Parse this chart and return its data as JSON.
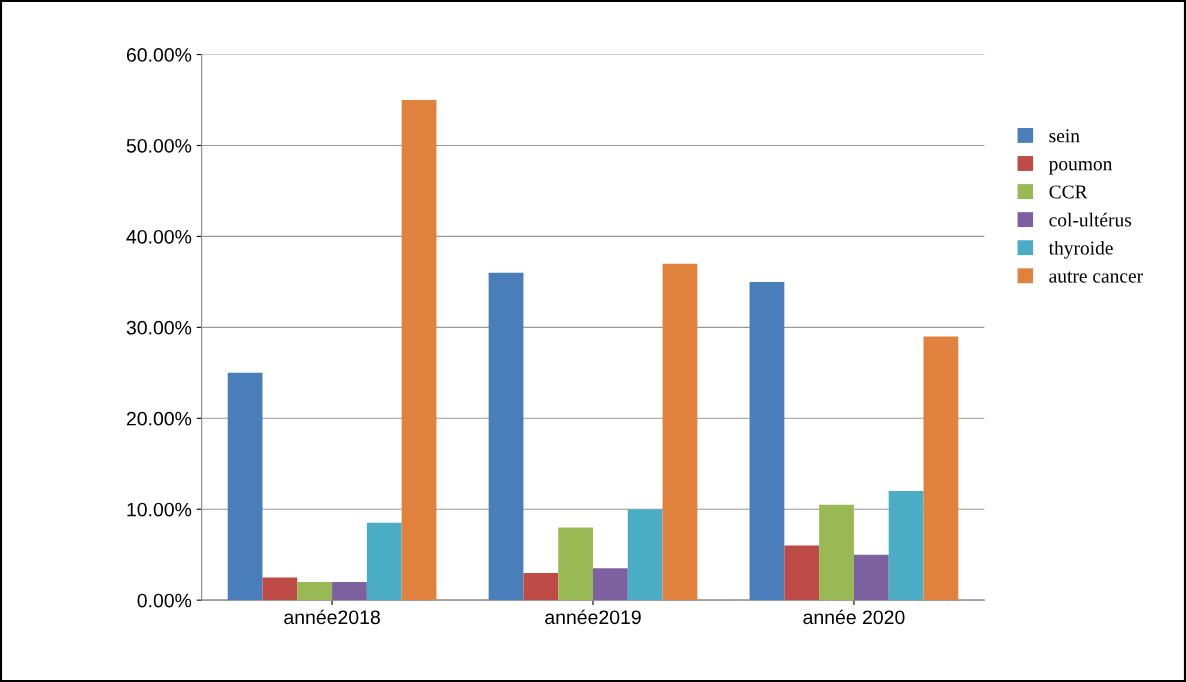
{
  "chart_data": {
    "type": "bar",
    "categories": [
      "année2018",
      "année2019",
      "année 2020"
    ],
    "series": [
      {
        "name": "sein",
        "color": "#4a7ebb",
        "values": [
          25,
          36,
          35
        ]
      },
      {
        "name": "poumon",
        "color": "#be4b48",
        "values": [
          2.5,
          3,
          6
        ]
      },
      {
        "name": "CCR",
        "color": "#98b954",
        "values": [
          2,
          8,
          10.5
        ]
      },
      {
        "name": "col-ultérus",
        "color": "#7d60a0",
        "values": [
          2,
          3.5,
          5
        ]
      },
      {
        "name": "thyroide",
        "color": "#4bacc6",
        "values": [
          8.5,
          10,
          12
        ]
      },
      {
        "name": "autre cancer",
        "color": "#e0823d",
        "values": [
          55,
          37,
          29
        ]
      }
    ],
    "ylim": [
      0,
      60
    ],
    "yticks": [
      {
        "value": 0,
        "label": "0.00%"
      },
      {
        "value": 10,
        "label": "10.00%"
      },
      {
        "value": 20,
        "label": "20.00%"
      },
      {
        "value": 30,
        "label": "30.00%"
      },
      {
        "value": 40,
        "label": "40.00%"
      },
      {
        "value": 50,
        "label": "50.00%"
      },
      {
        "value": 60,
        "label": "60.00%"
      }
    ],
    "grid": "y",
    "legend": "right"
  }
}
